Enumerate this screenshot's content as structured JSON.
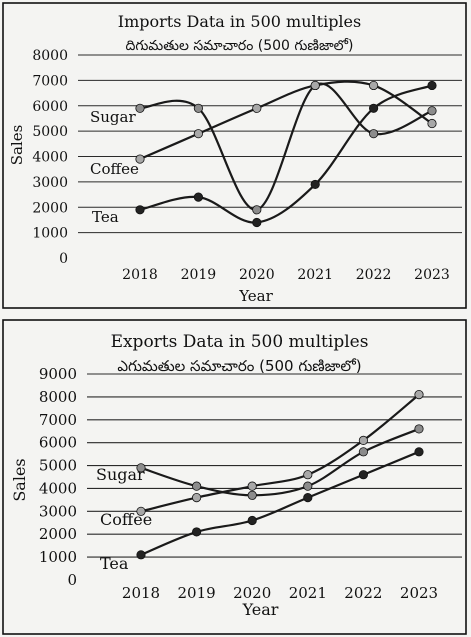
{
  "chart_data": [
    {
      "type": "line",
      "title": "Imports Data in 500 multiples",
      "subtitle": "దిగుమతుల సమాచారం (500 గుణిజాలో)",
      "xlabel": "Year",
      "ylabel": "Sales",
      "categories": [
        "2018",
        "2019",
        "2020",
        "2021",
        "2022",
        "2023"
      ],
      "ylim": [
        0,
        8000
      ],
      "yticks": [
        "0",
        "1000",
        "2000",
        "3000",
        "4000",
        "5000",
        "6000",
        "7000",
        "8000"
      ],
      "grid": true,
      "series": [
        {
          "name": "Sugar",
          "values": [
            5900,
            5900,
            1900,
            6800,
            4900,
            5800
          ],
          "marker_color": "#8c8c8c"
        },
        {
          "name": "Coffee",
          "values": [
            3900,
            4900,
            5900,
            6800,
            6800,
            5300
          ],
          "marker_color": "#a8a8a8"
        },
        {
          "name": "Tea",
          "values": [
            1900,
            2400,
            1400,
            2900,
            5900,
            6800
          ],
          "marker_color": "#222222"
        }
      ]
    },
    {
      "type": "line",
      "title": "Exports Data in 500 multiples",
      "subtitle": "ఎగుమతుల సమాచారం (500 గుణిజాలో)",
      "xlabel": "Year",
      "ylabel": "Sales",
      "categories": [
        "2018",
        "2019",
        "2020",
        "2021",
        "2022",
        "2023"
      ],
      "ylim": [
        0,
        9000
      ],
      "yticks": [
        "0",
        "1000",
        "2000",
        "3000",
        "4000",
        "5000",
        "6000",
        "7000",
        "8000",
        "9000"
      ],
      "grid": true,
      "series": [
        {
          "name": "Sugar",
          "values": [
            4900,
            4100,
            3700,
            4100,
            5600,
            6600
          ],
          "marker_color": "#8c8c8c"
        },
        {
          "name": "Coffee",
          "values": [
            3000,
            3600,
            4100,
            4600,
            6100,
            8100
          ],
          "marker_color": "#a8a8a8"
        },
        {
          "name": "Tea",
          "values": [
            1100,
            2100,
            2600,
            3600,
            4600,
            5600
          ],
          "marker_color": "#222222"
        }
      ]
    }
  ],
  "colors": {
    "line": "#1a1a1a",
    "grid": "#2a2a2a",
    "background": "#f4f4f2"
  }
}
